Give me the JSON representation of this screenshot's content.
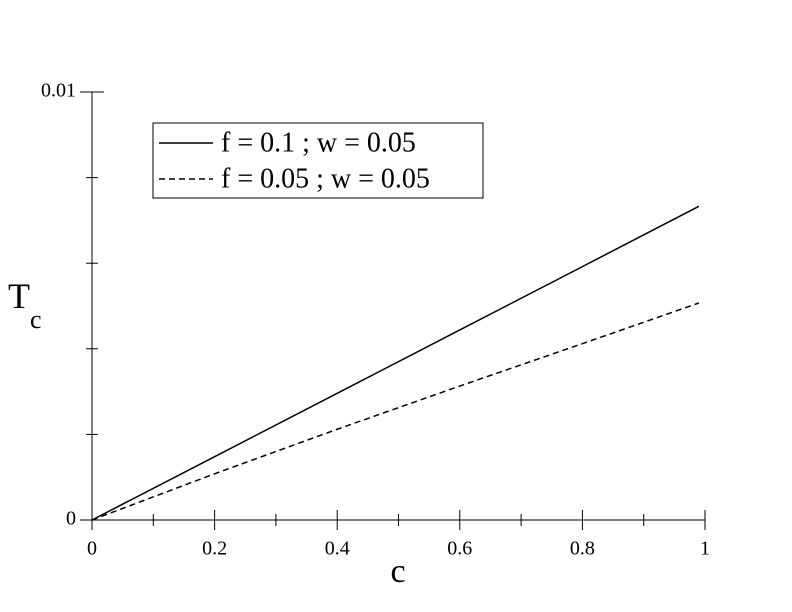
{
  "chart_data": {
    "type": "line",
    "xlabel": "c",
    "ylabel": "T",
    "ylabel_subscript": "c",
    "x": [
      0,
      0.2,
      0.4,
      0.6,
      0.8,
      0.99
    ],
    "series": [
      {
        "name": "f = 0.1 ; w = 0.05",
        "color": "#000000",
        "dash": "solid",
        "values": [
          0,
          0.00148,
          0.00296,
          0.00444,
          0.00592,
          0.00733
        ]
      },
      {
        "name": "f = 0.05 ; w = 0.05",
        "color": "#000000",
        "dash": "dashed",
        "values": [
          0,
          0.00108,
          0.00212,
          0.00313,
          0.00412,
          0.00507
        ]
      }
    ],
    "xlim": [
      0,
      1
    ],
    "ylim": [
      0,
      0.01
    ],
    "xticks": [
      0,
      0.2,
      0.4,
      0.6,
      0.8,
      1
    ],
    "xminorticks": [
      0.1,
      0.3,
      0.5,
      0.7,
      0.9
    ],
    "yticks": [
      0,
      0.01
    ],
    "yminorticks": [
      0.002,
      0.004,
      0.006,
      0.008
    ],
    "grid": false,
    "legend": "upper left"
  }
}
